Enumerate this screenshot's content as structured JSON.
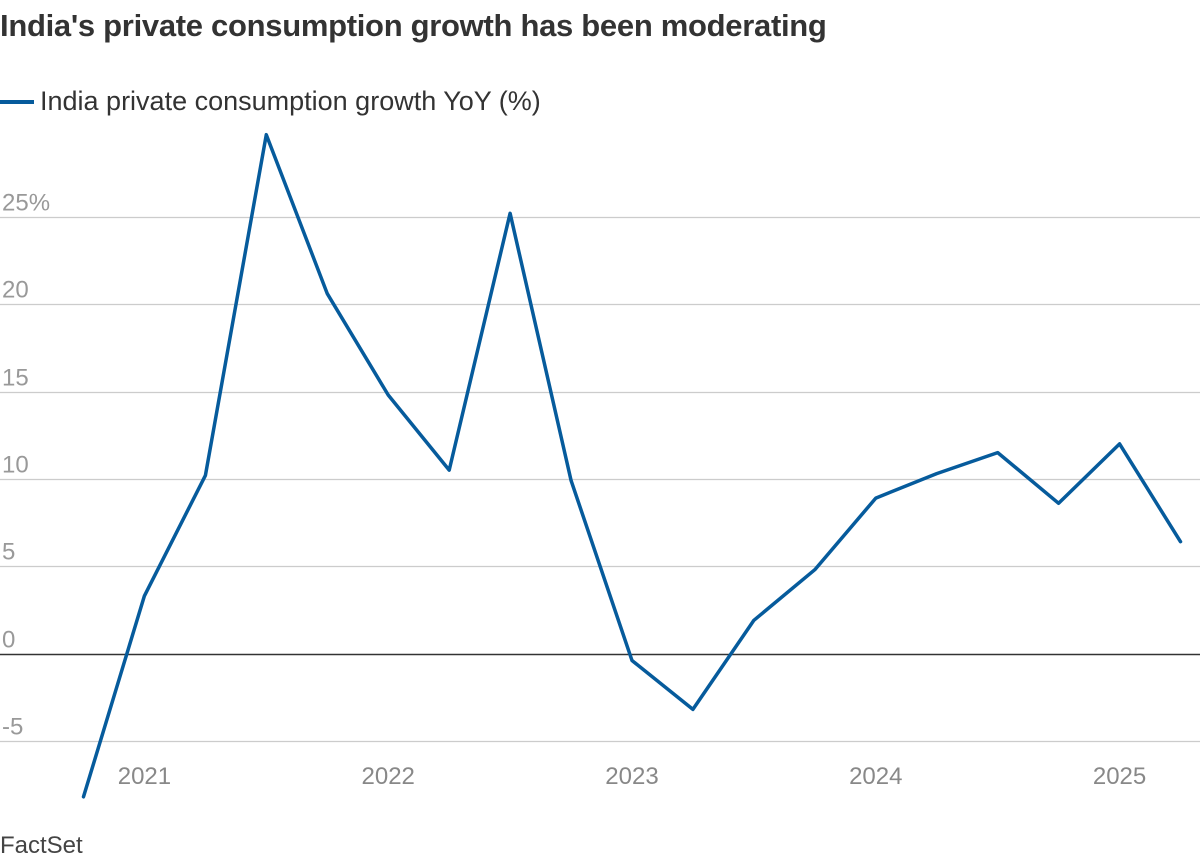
{
  "chart_data": {
    "type": "line",
    "title": "India's private consumption growth has been moderating",
    "source": "FactSet",
    "legend": "top-left",
    "color": "#065b9c",
    "ylim": [
      -8.5,
      30
    ],
    "yticks": [
      -5,
      0,
      5,
      10,
      15,
      20,
      25
    ],
    "ytick_labels": [
      "-5",
      "0",
      "5",
      "10",
      "15",
      "20",
      "25%"
    ],
    "xticks": [
      2021,
      2022,
      2023,
      2024,
      2025
    ],
    "xtick_labels": [
      "2021",
      "2022",
      "2023",
      "2024",
      "2025"
    ],
    "xlim": [
      2020.6,
      2025.45
    ],
    "series": [
      {
        "name": "India private consumption growth YoY (%)",
        "x": [
          2020.75,
          2021.0,
          2021.25,
          2021.5,
          2021.75,
          2022.0,
          2022.25,
          2022.5,
          2022.75,
          2023.0,
          2023.25,
          2023.5,
          2023.75,
          2024.0,
          2024.25,
          2024.5,
          2024.75,
          2025.0,
          2025.25
        ],
        "values": [
          -8.2,
          3.3,
          10.2,
          29.7,
          20.6,
          14.8,
          10.5,
          25.2,
          9.9,
          -0.4,
          -3.2,
          1.9,
          4.8,
          8.9,
          10.3,
          11.5,
          8.6,
          12.0,
          6.4
        ]
      }
    ]
  }
}
